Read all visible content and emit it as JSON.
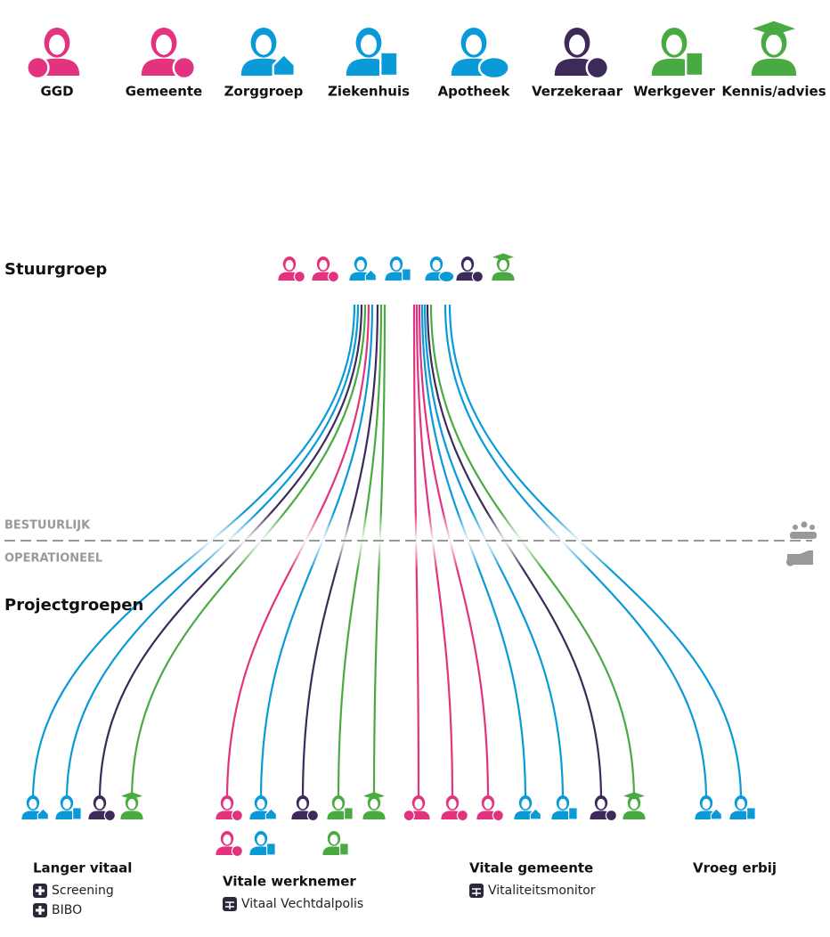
{
  "legend": [
    {
      "label": "GGD"
    },
    {
      "label": "Gemeente"
    },
    {
      "label": "Zorggroep"
    },
    {
      "label": "Ziekenhuis"
    },
    {
      "label": "Apotheek"
    },
    {
      "label": "Verzekeraar"
    },
    {
      "label": "Werkgever"
    },
    {
      "label": "Kennis/advies"
    }
  ],
  "steering": {
    "title": "Stuurgroep"
  },
  "levels": {
    "top": "BESTUURLIJK",
    "bottom": "OPERATIONEEL"
  },
  "projects_title": "Projectgroepen",
  "projects": [
    {
      "name": "Langer vitaal",
      "items": [
        "Screening",
        "BIBO"
      ]
    },
    {
      "name": "Vitale werknemer",
      "items": [
        "Vitaal Vechtdalpolis"
      ]
    },
    {
      "name": "Vitale gemeente",
      "items": [
        "Vitaliteitsmonitor"
      ]
    },
    {
      "name": "Vroeg erbij"
    }
  ]
}
